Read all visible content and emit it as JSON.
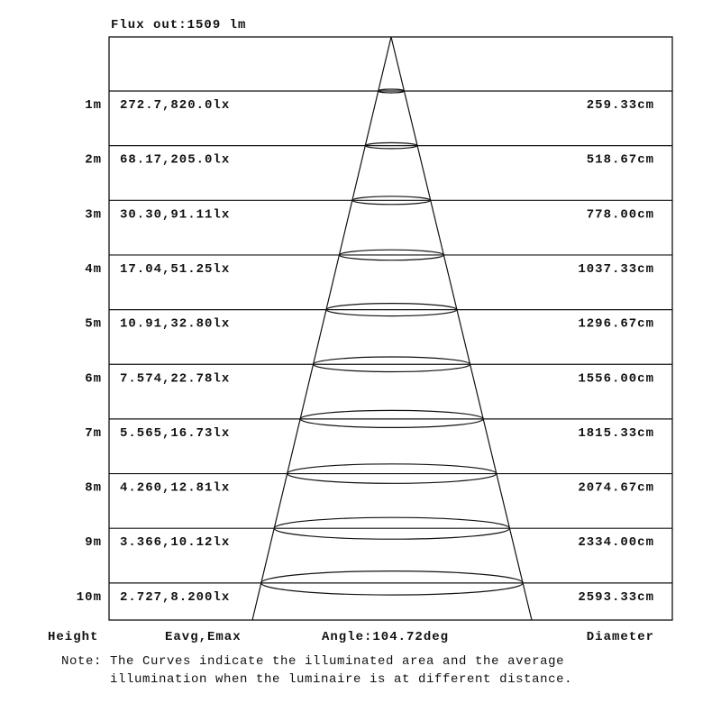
{
  "flux_label": "Flux out:1509 lm",
  "rows": [
    {
      "height": "1m",
      "eavg_emax": "272.7,820.0lx",
      "diameter": "259.33cm"
    },
    {
      "height": "2m",
      "eavg_emax": "68.17,205.0lx",
      "diameter": "518.67cm"
    },
    {
      "height": "3m",
      "eavg_emax": "30.30,91.11lx",
      "diameter": "778.00cm"
    },
    {
      "height": "4m",
      "eavg_emax": "17.04,51.25lx",
      "diameter": "1037.33cm"
    },
    {
      "height": "5m",
      "eavg_emax": "10.91,32.80lx",
      "diameter": "1296.67cm"
    },
    {
      "height": "6m",
      "eavg_emax": "7.574,22.78lx",
      "diameter": "1556.00cm"
    },
    {
      "height": "7m",
      "eavg_emax": "5.565,16.73lx",
      "diameter": "1815.33cm"
    },
    {
      "height": "8m",
      "eavg_emax": "4.260,12.81lx",
      "diameter": "2074.67cm"
    },
    {
      "height": "9m",
      "eavg_emax": "3.366,10.12lx",
      "diameter": "2334.00cm"
    },
    {
      "height": "10m",
      "eavg_emax": "2.727,8.200lx",
      "diameter": "2593.33cm"
    }
  ],
  "footer": {
    "height_label": "Height",
    "eavg_label": "Eavg,Emax",
    "angle_label": "Angle:104.72deg",
    "diameter_label": "Diameter"
  },
  "note": {
    "prefix": "Note:",
    "line1": "The Curves indicate the illuminated area and the average",
    "line2": "illumination when the luminaire is at different distance."
  }
}
